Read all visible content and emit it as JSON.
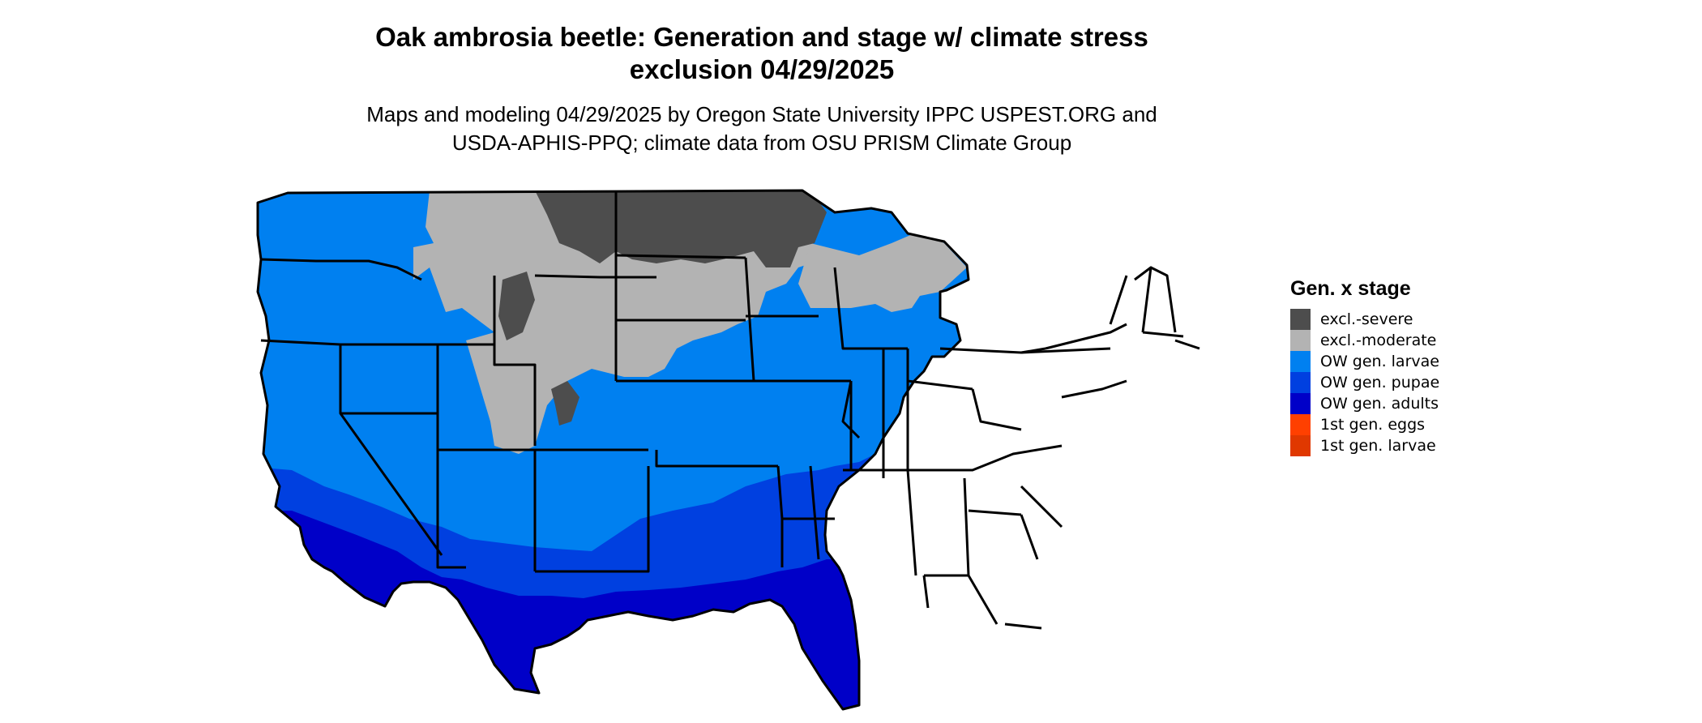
{
  "title_line1": "Oak ambrosia beetle: Generation and stage w/ climate stress",
  "title_line2": "exclusion 04/29/2025",
  "subtitle_line1": "Maps and modeling 04/29/2025 by Oregon State University IPPC USPEST.ORG and",
  "subtitle_line2": "USDA-APHIS-PPQ; climate data from OSU PRISM Climate Group",
  "legend": {
    "title": "Gen. x stage",
    "items": [
      {
        "label": "excl.-severe",
        "color": "#4d4d4d"
      },
      {
        "label": "excl.-moderate",
        "color": "#b3b3b3"
      },
      {
        "label": "OW gen. larvae",
        "color": "#0080f0"
      },
      {
        "label": "OW gen. pupae",
        "color": "#0040e0"
      },
      {
        "label": "OW gen. adults",
        "color": "#0000c8"
      },
      {
        "label": "1st gen. eggs",
        "color": "#ff4000"
      },
      {
        "label": "1st gen. larvae",
        "color": "#e03800"
      }
    ]
  }
}
